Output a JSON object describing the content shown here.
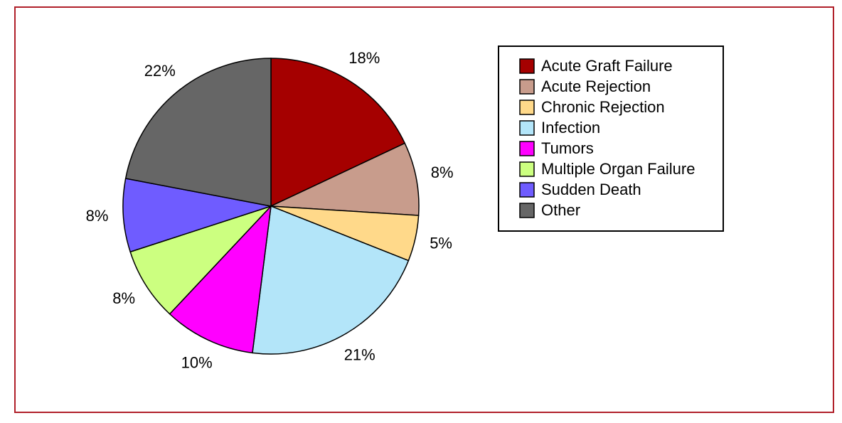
{
  "chart_data": {
    "type": "pie",
    "categories": [
      "Acute Graft Failure",
      "Acute Rejection",
      "Chronic Rejection",
      "Infection",
      "Tumors",
      "Multiple Organ Failure",
      "Sudden Death",
      "Other"
    ],
    "values": [
      18,
      8,
      5,
      21,
      10,
      8,
      8,
      22
    ],
    "value_labels": [
      "18%",
      "8%",
      "5%",
      "21%",
      "10%",
      "8%",
      "8%",
      "22%"
    ],
    "colors": [
      "#a50000",
      "#c89c8c",
      "#ffd98a",
      "#b3e5f9",
      "#ff00ff",
      "#ccff80",
      "#6f5cff",
      "#666666"
    ]
  }
}
